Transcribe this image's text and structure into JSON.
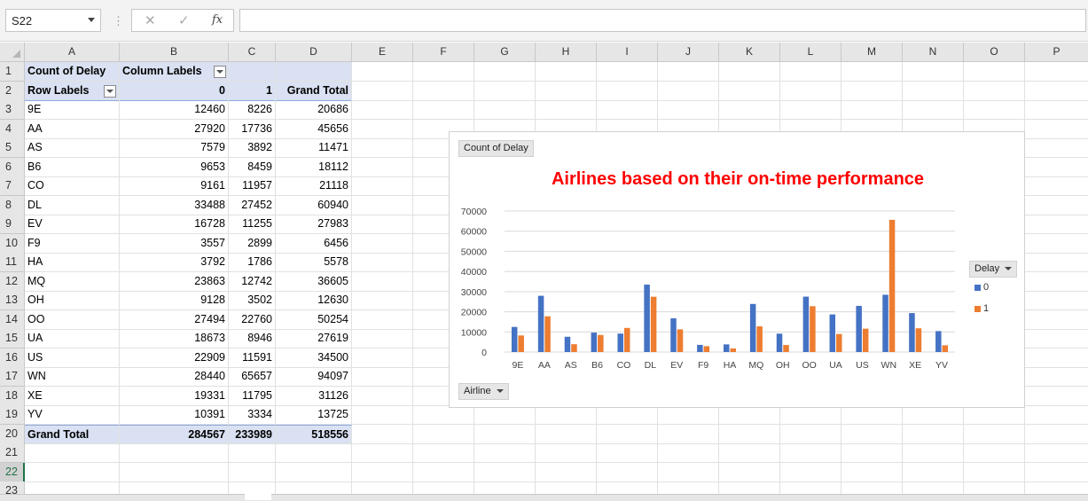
{
  "formula_bar": {
    "name_box": "S22",
    "cancel_icon": "✕",
    "enter_icon": "✓",
    "fx_label": "fx",
    "formula": ""
  },
  "columns": [
    "A",
    "B",
    "C",
    "D",
    "E",
    "F",
    "G",
    "H",
    "I",
    "J",
    "K",
    "L",
    "M",
    "N",
    "O",
    "P"
  ],
  "rows": [
    "1",
    "2",
    "3",
    "4",
    "5",
    "6",
    "7",
    "8",
    "9",
    "10",
    "11",
    "12",
    "13",
    "14",
    "15",
    "16",
    "17",
    "18",
    "19",
    "20",
    "21",
    "22",
    "23"
  ],
  "active_row": "22",
  "pivot": {
    "count_label": "Count of Delay",
    "column_labels": "Column Labels",
    "row_labels": "Row Labels",
    "col0": "0",
    "col1": "1",
    "grand_total_header": "Grand Total",
    "data": [
      {
        "airline": "9E",
        "v0": "12460",
        "v1": "8226",
        "total": "20686"
      },
      {
        "airline": "AA",
        "v0": "27920",
        "v1": "17736",
        "total": "45656"
      },
      {
        "airline": "AS",
        "v0": "7579",
        "v1": "3892",
        "total": "11471"
      },
      {
        "airline": "B6",
        "v0": "9653",
        "v1": "8459",
        "total": "18112"
      },
      {
        "airline": "CO",
        "v0": "9161",
        "v1": "11957",
        "total": "21118"
      },
      {
        "airline": "DL",
        "v0": "33488",
        "v1": "27452",
        "total": "60940"
      },
      {
        "airline": "EV",
        "v0": "16728",
        "v1": "11255",
        "total": "27983"
      },
      {
        "airline": "F9",
        "v0": "3557",
        "v1": "2899",
        "total": "6456"
      },
      {
        "airline": "HA",
        "v0": "3792",
        "v1": "1786",
        "total": "5578"
      },
      {
        "airline": "MQ",
        "v0": "23863",
        "v1": "12742",
        "total": "36605"
      },
      {
        "airline": "OH",
        "v0": "9128",
        "v1": "3502",
        "total": "12630"
      },
      {
        "airline": "OO",
        "v0": "27494",
        "v1": "22760",
        "total": "50254"
      },
      {
        "airline": "UA",
        "v0": "18673",
        "v1": "8946",
        "total": "27619"
      },
      {
        "airline": "US",
        "v0": "22909",
        "v1": "11591",
        "total": "34500"
      },
      {
        "airline": "WN",
        "v0": "28440",
        "v1": "65657",
        "total": "94097"
      },
      {
        "airline": "XE",
        "v0": "19331",
        "v1": "11795",
        "total": "31126"
      },
      {
        "airline": "YV",
        "v0": "10391",
        "v1": "3334",
        "total": "13725"
      }
    ],
    "grand_total": {
      "label": "Grand Total",
      "v0": "284567",
      "v1": "233989",
      "total": "518556"
    }
  },
  "chart": {
    "value_field": "Count of Delay",
    "axis_field": "Airline",
    "legend_field": "Delay",
    "colors": {
      "series0": "#4472c4",
      "series1": "#ed7d31",
      "title": "#ff0000"
    }
  },
  "chart_data": {
    "type": "bar",
    "title": "Airlines based on their on-time performance",
    "categories": [
      "9E",
      "AA",
      "AS",
      "B6",
      "CO",
      "DL",
      "EV",
      "F9",
      "HA",
      "MQ",
      "OH",
      "OO",
      "UA",
      "US",
      "WN",
      "XE",
      "YV"
    ],
    "series": [
      {
        "name": "0",
        "values": [
          12460,
          27920,
          7579,
          9653,
          9161,
          33488,
          16728,
          3557,
          3792,
          23863,
          9128,
          27494,
          18673,
          22909,
          28440,
          19331,
          10391
        ]
      },
      {
        "name": "1",
        "values": [
          8226,
          17736,
          3892,
          8459,
          11957,
          27452,
          11255,
          2899,
          1786,
          12742,
          3502,
          22760,
          8946,
          11591,
          65657,
          11795,
          3334
        ]
      }
    ],
    "yticks": [
      "0",
      "10000",
      "20000",
      "30000",
      "40000",
      "50000",
      "60000",
      "70000"
    ],
    "ylim": [
      0,
      70000
    ],
    "grid": true,
    "legend": "right"
  }
}
